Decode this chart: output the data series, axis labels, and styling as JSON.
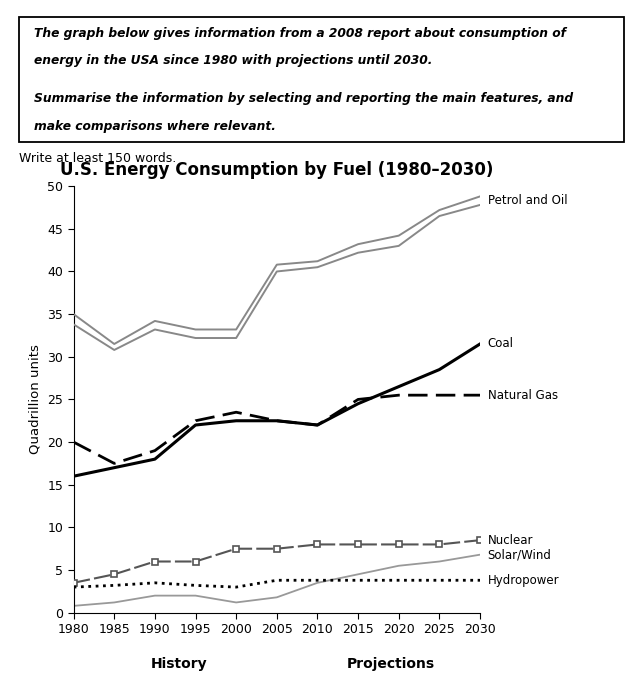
{
  "title": "U.S. Energy Consumption by Fuel (1980–2030)",
  "ylabel": "Quadrillion units",
  "xlabel_history": "History",
  "xlabel_projections": "Projections",
  "write_at_least": "Write at least 150 words.",
  "textbox_line1": "The graph below gives information from a 2008 report about consumption of",
  "textbox_line2": "energy in the USA since 1980 with projections until 2030.",
  "textbox_line3": "Summarise the information by selecting and reporting the main features, and",
  "textbox_line4": "make comparisons where relevant.",
  "years": [
    1980,
    1985,
    1990,
    1995,
    2000,
    2005,
    2010,
    2015,
    2020,
    2025,
    2030
  ],
  "petrol_oil_upper": [
    35,
    31.5,
    34.2,
    33.2,
    33.2,
    40.8,
    41.2,
    43.2,
    44.2,
    47.2,
    48.8
  ],
  "petrol_oil_lower": [
    33.8,
    30.8,
    33.2,
    32.2,
    32.2,
    40.0,
    40.5,
    42.2,
    43.0,
    46.5,
    47.8
  ],
  "coal": [
    16.0,
    17.0,
    18.0,
    22.0,
    22.5,
    22.5,
    22.0,
    24.5,
    26.5,
    28.5,
    31.5
  ],
  "natural_gas": [
    20.0,
    17.5,
    19.0,
    22.5,
    23.5,
    22.5,
    22.0,
    25.0,
    25.5,
    25.5,
    25.5
  ],
  "nuclear": [
    3.5,
    4.5,
    6.0,
    6.0,
    7.5,
    7.5,
    8.0,
    8.0,
    8.0,
    8.0,
    8.5
  ],
  "solar_wind": [
    0.8,
    1.2,
    2.0,
    2.0,
    1.2,
    1.8,
    3.5,
    4.5,
    5.5,
    6.0,
    6.8
  ],
  "hydropower": [
    3.0,
    3.2,
    3.5,
    3.2,
    3.0,
    3.8,
    3.8,
    3.8,
    3.8,
    3.8,
    3.8
  ],
  "ylim": [
    0,
    50
  ],
  "yticks": [
    0,
    5,
    10,
    15,
    20,
    25,
    30,
    35,
    40,
    45,
    50
  ],
  "xticks": [
    1980,
    1985,
    1990,
    1995,
    2000,
    2005,
    2010,
    2015,
    2020,
    2025,
    2030
  ],
  "petrol_color": "#888888",
  "coal_color": "#000000",
  "natgas_color": "#000000",
  "nuclear_color": "#555555",
  "solar_color": "#999999",
  "hydro_color": "#000000"
}
